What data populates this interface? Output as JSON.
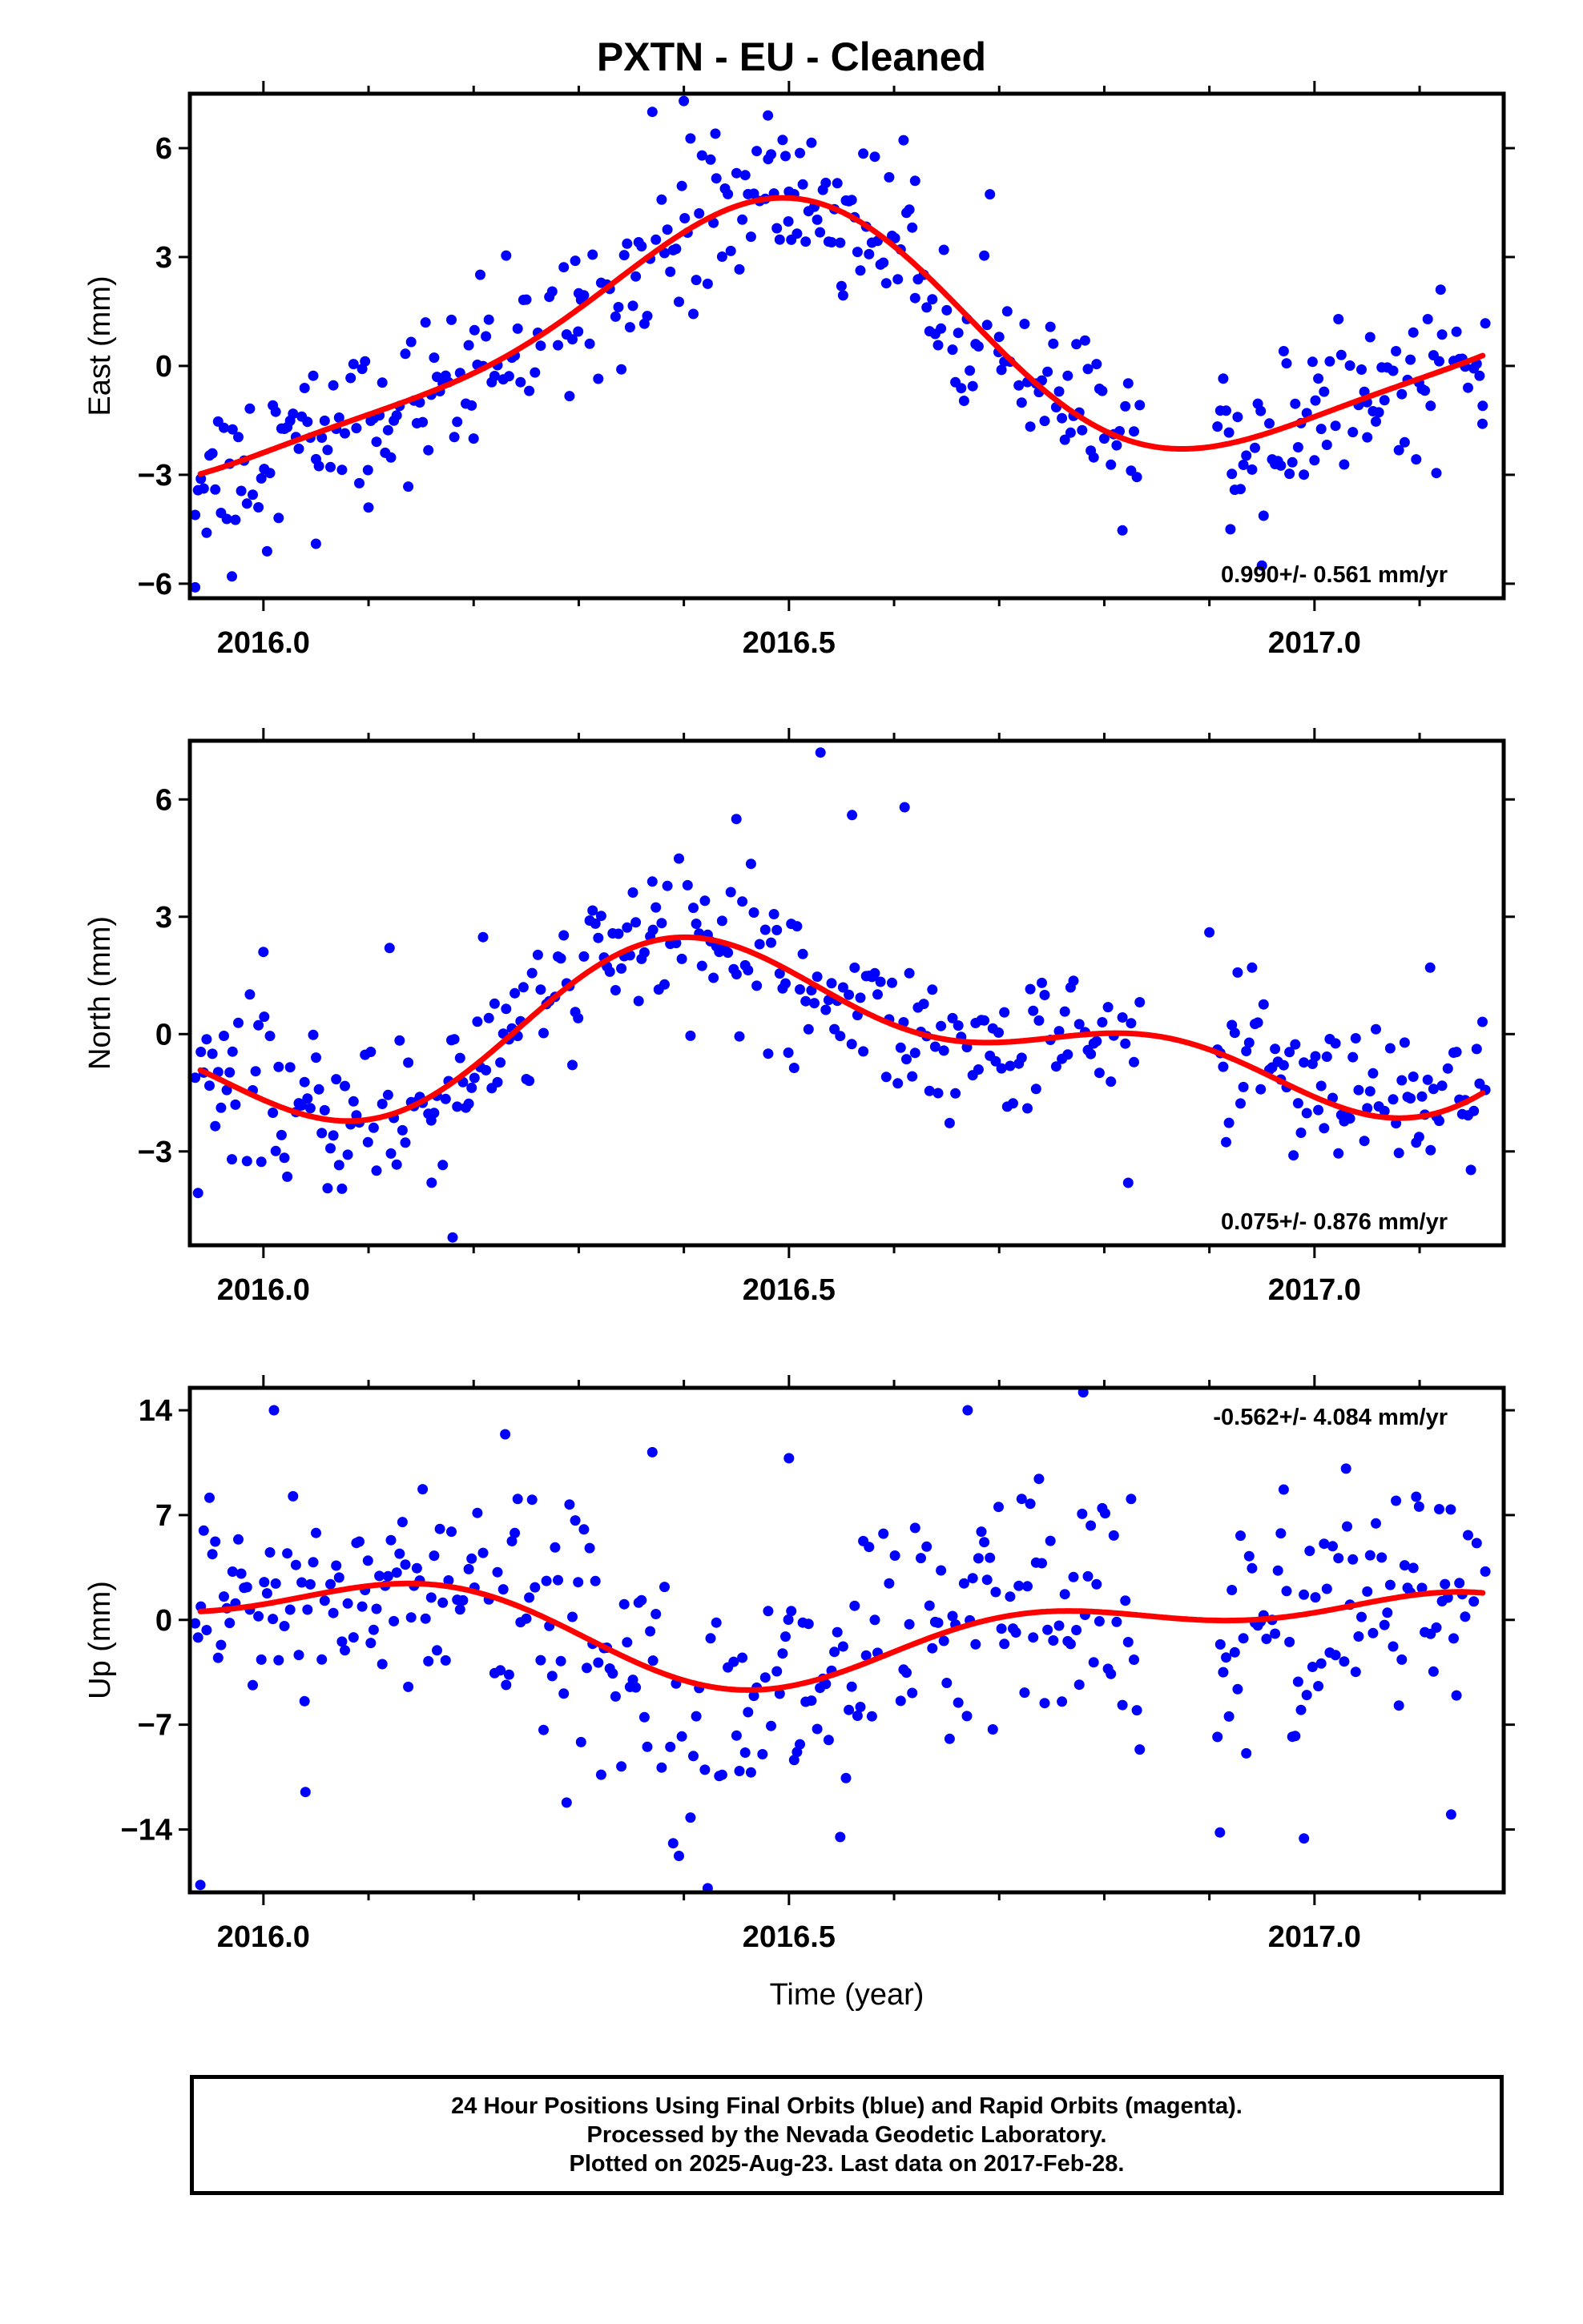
{
  "title": "PXTN  - EU - Cleaned",
  "colors": {
    "data": "#0000ff",
    "fit": "#ff0000",
    "frame": "#000000"
  },
  "chart_data": [
    {
      "type": "scatter",
      "component": "East",
      "ylabel": "East (mm)",
      "xlabel": "",
      "xlim": [
        2015.93,
        2017.18
      ],
      "ylim": [
        -6.4,
        7.5
      ],
      "xticks": [
        2016.0,
        2016.5,
        2017.0
      ],
      "xtick_labels": [
        "2016.0",
        "2016.5",
        "2017.0"
      ],
      "yticks": [
        -6,
        -3,
        0,
        3,
        6
      ],
      "ytick_labels": [
        "−6",
        "−3",
        "0",
        "3",
        "6"
      ],
      "rate_text": "0.990+/- 0.561 mm/yr",
      "rate_position": "bottom-right",
      "fit": {
        "mean": 0.62,
        "amp1": 3.4,
        "phase1": 5.0,
        "amp2": 0.8,
        "phase2": 1.2,
        "trend": 0.99
      },
      "scatter_std": 1.05,
      "series": [
        {
          "x": [
            2015.935,
            2015.97,
            2016.05,
            2016.1,
            2016.2,
            2016.3,
            2016.37,
            2016.4,
            2016.43,
            2016.48,
            2016.5,
            2016.55,
            2016.62,
            2016.7,
            2016.8,
            2016.92,
            2016.95,
            2017.0,
            2017.05,
            2017.12,
            2017.16
          ],
          "y": [
            -6.1,
            -5.8,
            -4.9,
            -3.9,
            -2.0,
            2.0,
            7.0,
            7.3,
            6.4,
            6.9,
            4.8,
            2.2,
            5.1,
            0.8,
            -2.0,
            -4.5,
            -5.5,
            -2.6,
            -1.0,
            2.1,
            -1.1
          ]
        }
      ]
    },
    {
      "type": "scatter",
      "component": "North",
      "ylabel": "North (mm)",
      "xlabel": "",
      "xlim": [
        2015.93,
        2017.18
      ],
      "ylim": [
        -5.4,
        7.5
      ],
      "xticks": [
        2016.0,
        2016.5,
        2017.0
      ],
      "xtick_labels": [
        "2016.0",
        "2016.5",
        "2017.0"
      ],
      "yticks": [
        -3,
        0,
        3,
        6
      ],
      "ytick_labels": [
        "−3",
        "0",
        "3",
        "6"
      ],
      "rate_text": "0.075+/- 0.876 mm/yr",
      "rate_position": "bottom-right",
      "fit": {
        "mean": 0.05,
        "amp1": 1.65,
        "phase1": 4.85,
        "amp2": 1.05,
        "phase2": 3.2,
        "trend": 0.075
      },
      "scatter_std": 0.95,
      "series": [
        {
          "x": [
            2015.97,
            2016.0,
            2016.12,
            2016.16,
            2016.18,
            2016.37,
            2016.45,
            2016.53,
            2016.56,
            2016.61,
            2016.9,
            2016.98,
            2017.11
          ],
          "y": [
            -3.2,
            2.1,
            2.2,
            -3.8,
            -5.2,
            3.9,
            5.5,
            7.2,
            5.6,
            5.8,
            2.6,
            -3.1,
            1.7
          ]
        }
      ]
    },
    {
      "type": "scatter",
      "component": "Up",
      "ylabel": "Up (mm)",
      "xlabel": "Time (year)",
      "xlim": [
        2015.93,
        2017.18
      ],
      "ylim": [
        -18.2,
        15.5
      ],
      "xticks": [
        2016.0,
        2016.5,
        2017.0
      ],
      "xtick_labels": [
        "2016.0",
        "2016.5",
        "2017.0"
      ],
      "yticks": [
        -14,
        -7,
        0,
        7,
        14
      ],
      "ytick_labels": [
        "−14",
        "−7",
        "0",
        "7",
        "14"
      ],
      "rate_text": "-0.562+/- 4.084 mm/yr",
      "rate_position": "top-right",
      "fit": {
        "mean": -0.6,
        "amp1": 2.6,
        "phase1": 1.6,
        "amp2": 1.6,
        "phase2": 5.4,
        "trend": -0.562
      },
      "scatter_std": 4.0,
      "series": [
        {
          "x": [
            2015.94,
            2016.01,
            2016.04,
            2016.23,
            2016.37,
            2016.5,
            2016.67,
            2016.78,
            2016.91,
            2016.99,
            2017.03,
            2017.13
          ],
          "y": [
            -17.7,
            14.0,
            -11.5,
            12.4,
            11.2,
            10.8,
            14.0,
            15.2,
            -14.2,
            -14.6,
            10.1,
            -13.0
          ]
        }
      ]
    }
  ],
  "footer": {
    "line1": "24 Hour Positions Using Final Orbits (blue) and Rapid Orbits (magenta).",
    "line2": "Processed by the Nevada Geodetic Laboratory.",
    "line3": "Plotted on 2025-Aug-23. Last data on 2017-Feb-28."
  }
}
